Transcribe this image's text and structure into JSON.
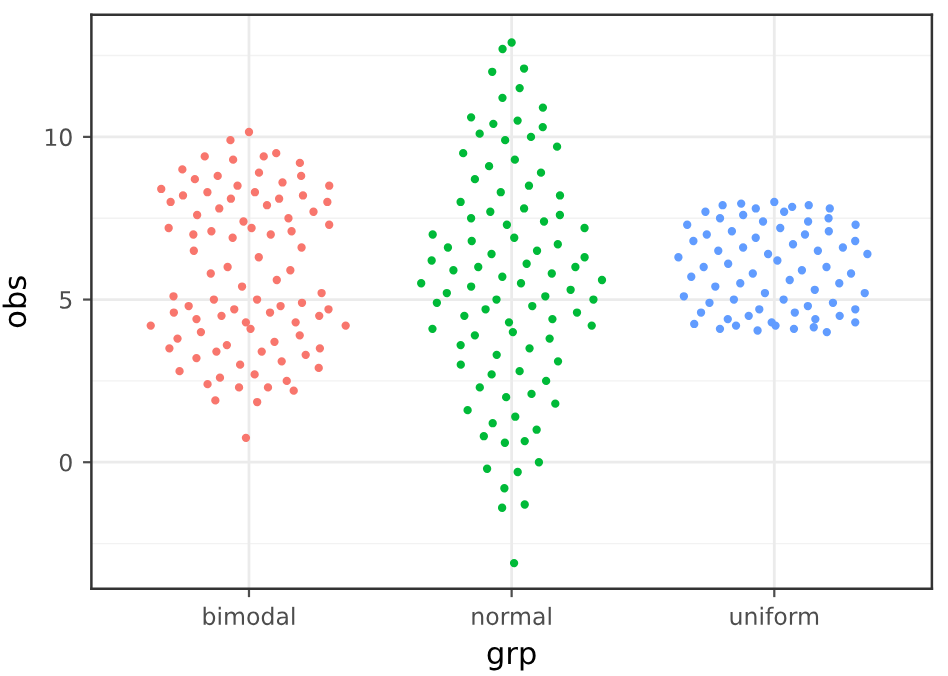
{
  "chart_data": {
    "type": "scatter",
    "xlabel": "grp",
    "ylabel": "obs",
    "categories": [
      "bimodal",
      "normal",
      "uniform"
    ],
    "ylim": [
      -3.89,
      13.75
    ],
    "yticks": [
      0,
      5,
      10
    ],
    "grid": true,
    "marker": "circle",
    "series": [
      {
        "color": "#f8766d",
        "x": [
          "bimodal",
          "bimodal",
          "bimodal",
          "bimodal",
          "bimodal",
          "bimodal",
          "bimodal",
          "bimodal",
          "bimodal",
          "bimodal",
          "bimodal",
          "bimodal",
          "bimodal",
          "bimodal",
          "bimodal",
          "bimodal",
          "bimodal",
          "bimodal",
          "bimodal",
          "bimodal",
          "bimodal",
          "bimodal",
          "bimodal",
          "bimodal",
          "bimodal",
          "bimodal",
          "bimodal",
          "bimodal",
          "bimodal",
          "bimodal",
          "bimodal",
          "bimodal",
          "bimodal",
          "bimodal",
          "bimodal",
          "bimodal",
          "bimodal",
          "bimodal",
          "bimodal",
          "bimodal",
          "bimodal",
          "bimodal",
          "bimodal",
          "bimodal",
          "bimodal",
          "bimodal",
          "bimodal",
          "bimodal",
          "bimodal",
          "bimodal",
          "bimodal",
          "bimodal",
          "bimodal",
          "bimodal",
          "bimodal",
          "bimodal",
          "bimodal",
          "bimodal",
          "bimodal",
          "bimodal",
          "bimodal",
          "bimodal",
          "bimodal",
          "bimodal",
          "bimodal",
          "bimodal",
          "bimodal",
          "bimodal",
          "bimodal",
          "bimodal",
          "bimodal",
          "bimodal",
          "bimodal",
          "bimodal",
          "bimodal",
          "bimodal",
          "bimodal",
          "bimodal",
          "bimodal",
          "bimodal",
          "bimodal",
          "bimodal",
          "bimodal",
          "bimodal",
          "bimodal",
          "bimodal",
          "bimodal",
          "bimodal",
          "bimodal",
          "bimodal"
        ],
        "values": [
          10.15,
          9.9,
          9.5,
          9.4,
          9.4,
          9.3,
          9.2,
          9.0,
          8.9,
          8.8,
          8.8,
          8.7,
          8.6,
          8.5,
          8.5,
          8.4,
          8.3,
          8.3,
          8.2,
          8.2,
          8.1,
          8.1,
          8.0,
          8.0,
          7.9,
          7.8,
          7.7,
          7.6,
          7.5,
          7.4,
          7.3,
          7.2,
          7.2,
          7.1,
          7.1,
          7.0,
          7.0,
          6.9,
          6.6,
          6.5,
          6.3,
          6.0,
          5.9,
          5.8,
          5.6,
          5.4,
          5.2,
          5.1,
          5.0,
          5.0,
          4.9,
          4.8,
          4.8,
          4.7,
          4.7,
          4.6,
          4.6,
          4.5,
          4.5,
          4.4,
          4.3,
          4.3,
          4.2,
          4.2,
          4.1,
          4.0,
          3.9,
          3.8,
          3.7,
          3.6,
          3.5,
          3.5,
          3.4,
          3.4,
          3.3,
          3.2,
          3.1,
          3.0,
          2.9,
          2.8,
          2.7,
          2.6,
          2.5,
          2.4,
          2.3,
          2.3,
          2.2,
          1.9,
          1.85,
          0.75
        ]
      },
      {
        "color": "#00ba38",
        "x": [
          "normal",
          "normal",
          "normal",
          "normal",
          "normal",
          "normal",
          "normal",
          "normal",
          "normal",
          "normal",
          "normal",
          "normal",
          "normal",
          "normal",
          "normal",
          "normal",
          "normal",
          "normal",
          "normal",
          "normal",
          "normal",
          "normal",
          "normal",
          "normal",
          "normal",
          "normal",
          "normal",
          "normal",
          "normal",
          "normal",
          "normal",
          "normal",
          "normal",
          "normal",
          "normal",
          "normal",
          "normal",
          "normal",
          "normal",
          "normal",
          "normal",
          "normal",
          "normal",
          "normal",
          "normal",
          "normal",
          "normal",
          "normal",
          "normal",
          "normal",
          "normal",
          "normal",
          "normal",
          "normal",
          "normal",
          "normal",
          "normal",
          "normal",
          "normal",
          "normal",
          "normal",
          "normal",
          "normal",
          "normal",
          "normal",
          "normal",
          "normal",
          "normal",
          "normal",
          "normal",
          "normal",
          "normal",
          "normal",
          "normal",
          "normal",
          "normal",
          "normal",
          "normal",
          "normal",
          "normal",
          "normal",
          "normal",
          "normal",
          "normal",
          "normal",
          "normal",
          "normal",
          "normal",
          "normal",
          "normal",
          "normal",
          "normal",
          "normal"
        ],
        "values": [
          12.9,
          12.7,
          12.1,
          12.0,
          11.5,
          11.2,
          10.9,
          10.6,
          10.5,
          10.4,
          10.3,
          10.1,
          10.0,
          9.9,
          9.7,
          9.5,
          9.3,
          9.1,
          8.9,
          8.7,
          8.5,
          8.3,
          8.2,
          8.0,
          7.8,
          7.7,
          7.6,
          7.5,
          7.4,
          7.3,
          7.2,
          7.0,
          6.9,
          6.8,
          6.7,
          6.6,
          6.5,
          6.4,
          6.3,
          6.2,
          6.1,
          6.0,
          6.0,
          5.9,
          5.8,
          5.7,
          5.6,
          5.5,
          5.5,
          5.4,
          5.3,
          5.2,
          5.1,
          5.0,
          5.0,
          4.9,
          4.8,
          4.7,
          4.6,
          4.5,
          4.4,
          4.3,
          4.2,
          4.1,
          4.0,
          3.9,
          3.8,
          3.6,
          3.5,
          3.3,
          3.1,
          3.0,
          2.8,
          2.7,
          2.5,
          2.3,
          2.1,
          2.0,
          1.8,
          1.6,
          1.4,
          1.2,
          1.0,
          0.8,
          0.65,
          0.6,
          0.0,
          -0.2,
          -0.3,
          -0.8,
          -1.3,
          -1.4,
          -3.1
        ]
      },
      {
        "color": "#619cff",
        "x": [
          "uniform",
          "uniform",
          "uniform",
          "uniform",
          "uniform",
          "uniform",
          "uniform",
          "uniform",
          "uniform",
          "uniform",
          "uniform",
          "uniform",
          "uniform",
          "uniform",
          "uniform",
          "uniform",
          "uniform",
          "uniform",
          "uniform",
          "uniform",
          "uniform",
          "uniform",
          "uniform",
          "uniform",
          "uniform",
          "uniform",
          "uniform",
          "uniform",
          "uniform",
          "uniform",
          "uniform",
          "uniform",
          "uniform",
          "uniform",
          "uniform",
          "uniform",
          "uniform",
          "uniform",
          "uniform",
          "uniform",
          "uniform",
          "uniform",
          "uniform",
          "uniform",
          "uniform",
          "uniform",
          "uniform",
          "uniform",
          "uniform",
          "uniform",
          "uniform",
          "uniform",
          "uniform",
          "uniform",
          "uniform",
          "uniform",
          "uniform",
          "uniform",
          "uniform",
          "uniform",
          "uniform",
          "uniform",
          "uniform",
          "uniform",
          "uniform",
          "uniform",
          "uniform",
          "uniform",
          "uniform",
          "uniform",
          "uniform"
        ],
        "values": [
          8.0,
          7.95,
          7.9,
          7.9,
          7.85,
          7.8,
          7.8,
          7.7,
          7.7,
          7.6,
          7.5,
          7.5,
          7.4,
          7.4,
          7.3,
          7.3,
          7.2,
          7.1,
          7.1,
          7.0,
          7.0,
          6.9,
          6.8,
          6.8,
          6.7,
          6.6,
          6.6,
          6.5,
          6.5,
          6.4,
          6.4,
          6.3,
          6.2,
          6.1,
          6.0,
          6.0,
          5.9,
          5.8,
          5.8,
          5.7,
          5.6,
          5.5,
          5.5,
          5.4,
          5.3,
          5.2,
          5.2,
          5.1,
          5.0,
          5.0,
          4.9,
          4.9,
          4.8,
          4.7,
          4.7,
          4.6,
          4.6,
          4.5,
          4.5,
          4.4,
          4.4,
          4.3,
          4.3,
          4.25,
          4.2,
          4.2,
          4.15,
          4.1,
          4.1,
          4.05,
          4.0
        ]
      }
    ]
  }
}
